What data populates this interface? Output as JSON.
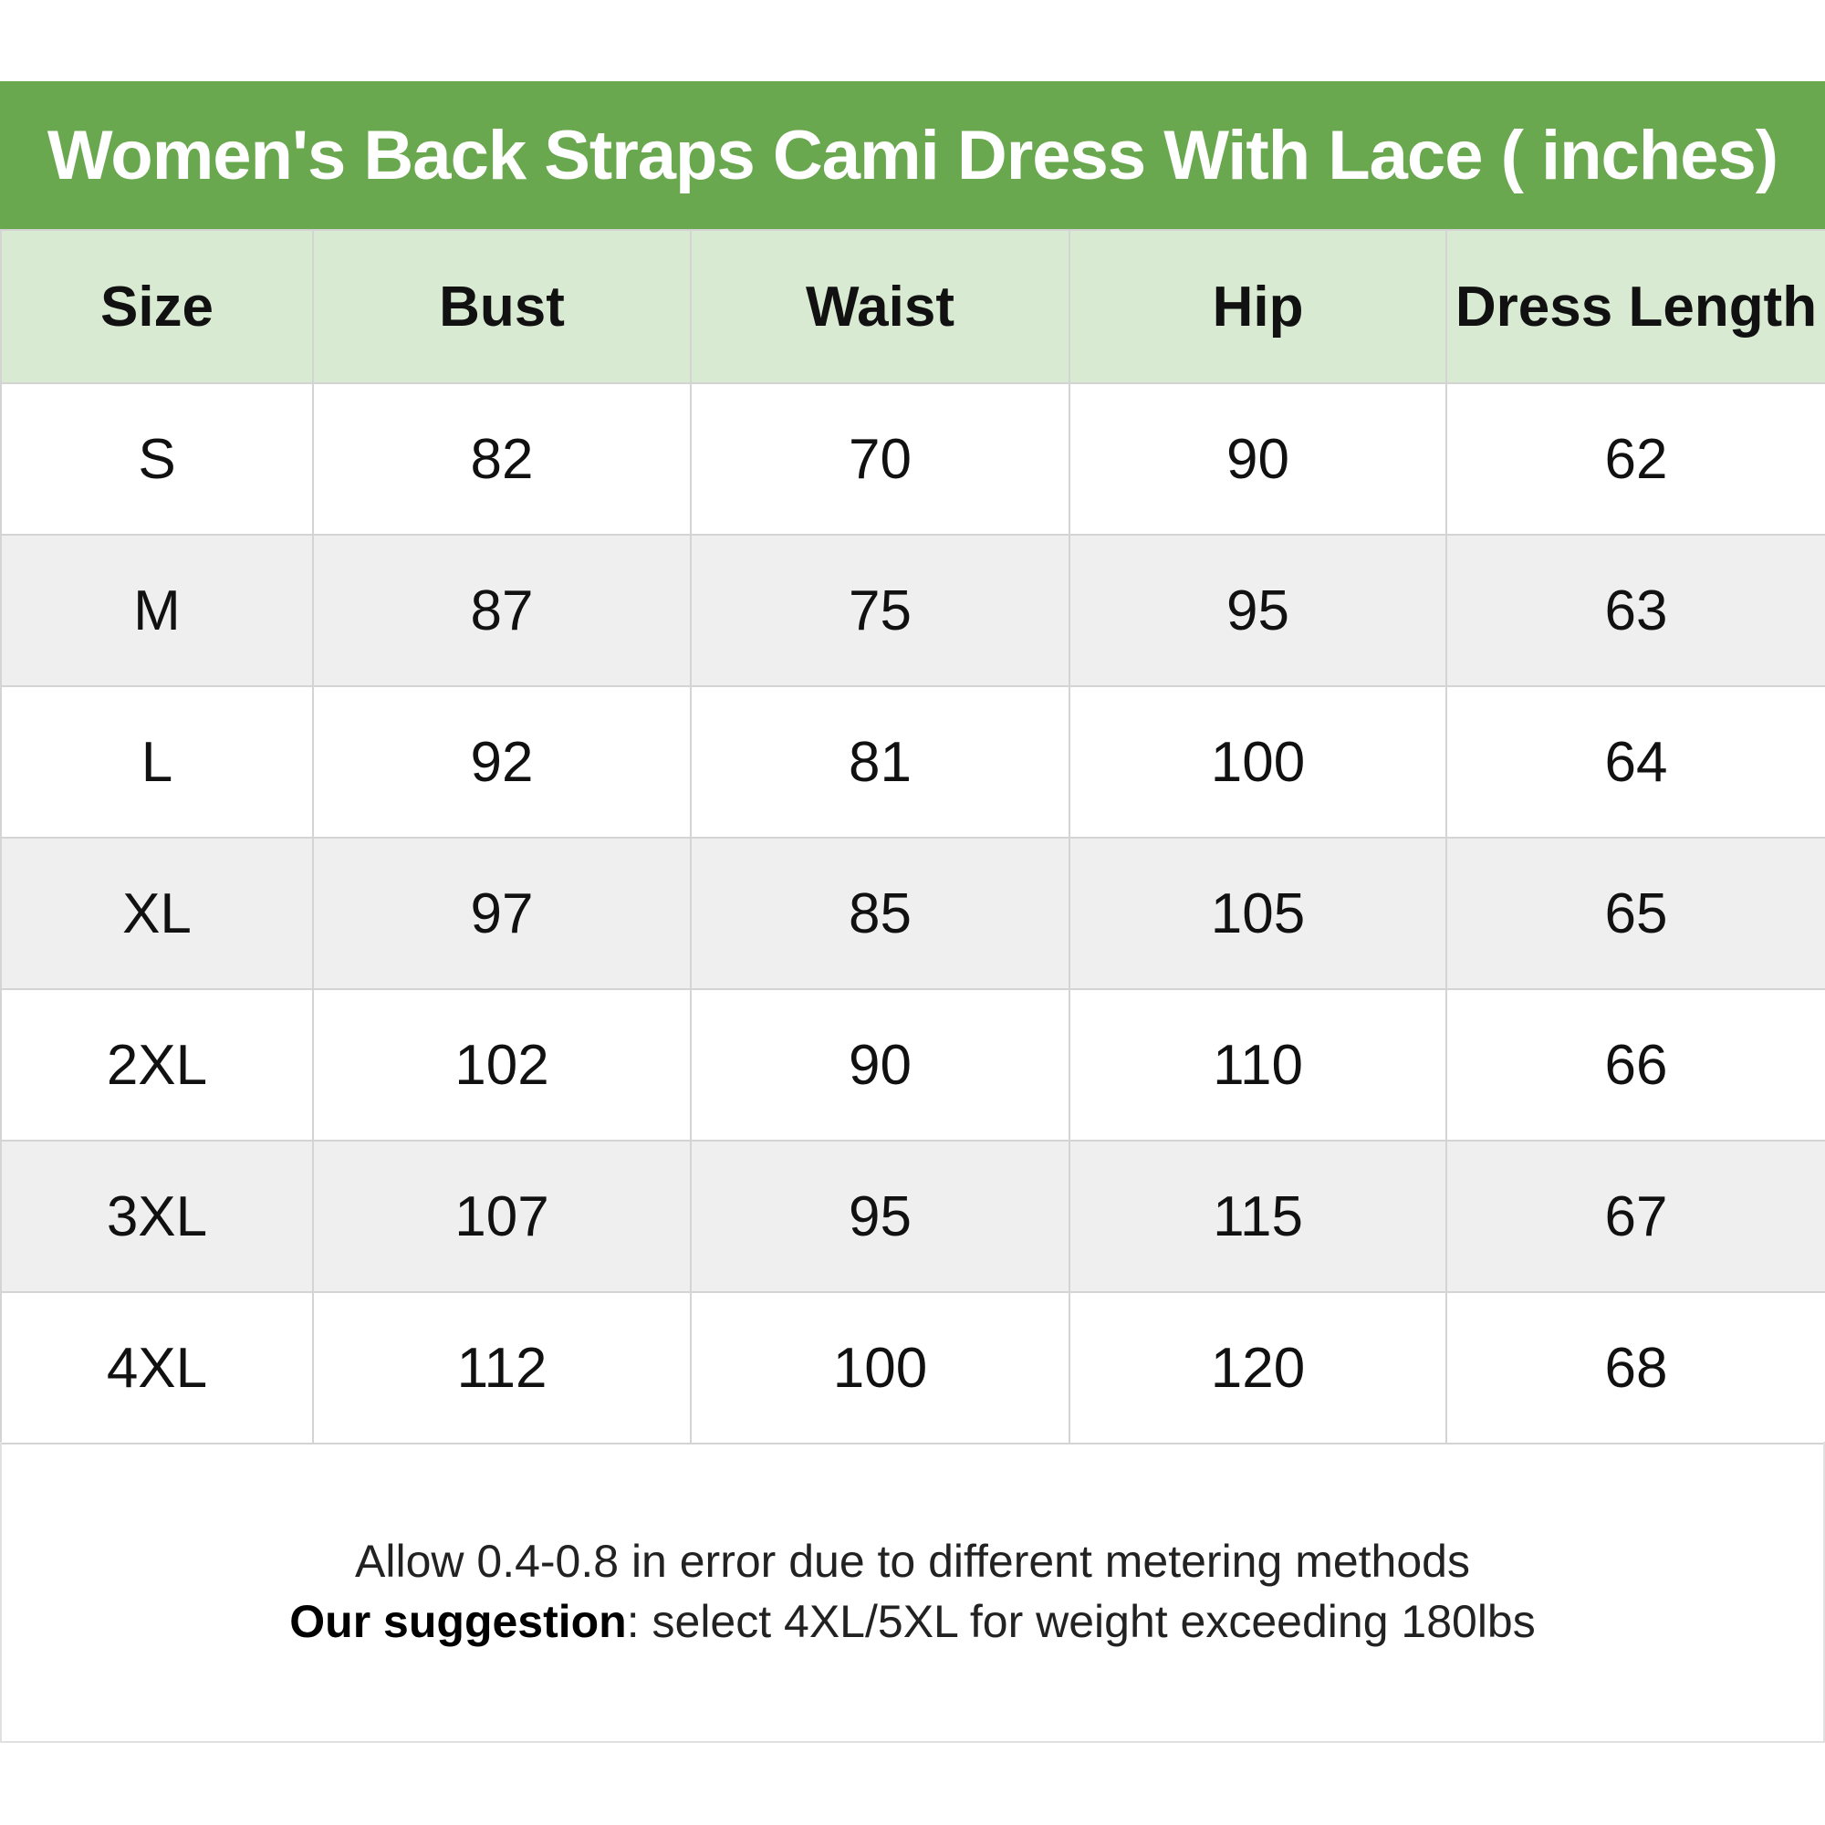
{
  "title": "Women's Back Straps Cami Dress With Lace ( inches)",
  "colors": {
    "title_bg": "#6aa84f",
    "header_bg": "#d9ead3",
    "alt_row_bg": "#efefef"
  },
  "table": {
    "headers": [
      "Size",
      "Bust",
      "Waist",
      "Hip",
      "Dress Length"
    ],
    "rows": [
      [
        "S",
        "82",
        "70",
        "90",
        "62"
      ],
      [
        "M",
        "87",
        "75",
        "95",
        "63"
      ],
      [
        "L",
        "92",
        "81",
        "100",
        "64"
      ],
      [
        "XL",
        "97",
        "85",
        "105",
        "65"
      ],
      [
        "2XL",
        "102",
        "90",
        "110",
        "66"
      ],
      [
        "3XL",
        "107",
        "95",
        "115",
        "67"
      ],
      [
        "4XL",
        "112",
        "100",
        "120",
        "68"
      ]
    ]
  },
  "footer": {
    "note": "Allow 0.4-0.8 in error due to different metering methods",
    "suggestion_label": "Our suggestion",
    "suggestion_text": ": select 4XL/5XL for weight exceeding 180lbs"
  }
}
